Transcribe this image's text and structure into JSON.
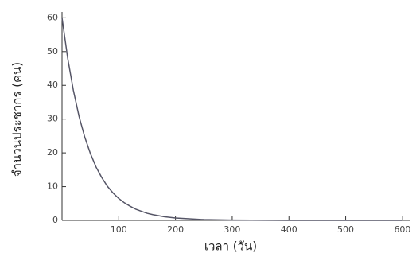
{
  "chart_data": {
    "type": "line",
    "x_label": "เวลา (วัน)",
    "y_label": "จำนวนประชากร (คน)",
    "x": [
      0,
      10,
      20,
      30,
      40,
      50,
      60,
      70,
      80,
      90,
      100,
      110,
      120,
      130,
      140,
      150,
      160,
      180,
      200,
      250,
      300,
      400,
      500,
      600
    ],
    "series": [
      {
        "name": "population",
        "color": "#555566",
        "values": [
          60,
          48.0,
          38.5,
          30.8,
          24.7,
          19.8,
          15.8,
          12.7,
          10.1,
          8.1,
          6.5,
          5.2,
          4.2,
          3.3,
          2.7,
          2.1,
          1.7,
          1.1,
          0.7,
          0.23,
          0.08,
          0.01,
          0,
          0
        ]
      }
    ],
    "xlim": [
      0,
      610
    ],
    "ylim": [
      0,
      61.5
    ],
    "xticks": [
      100,
      200,
      300,
      400,
      500,
      600
    ],
    "yticks": [
      0,
      10,
      20,
      30,
      40,
      50,
      60
    ]
  }
}
